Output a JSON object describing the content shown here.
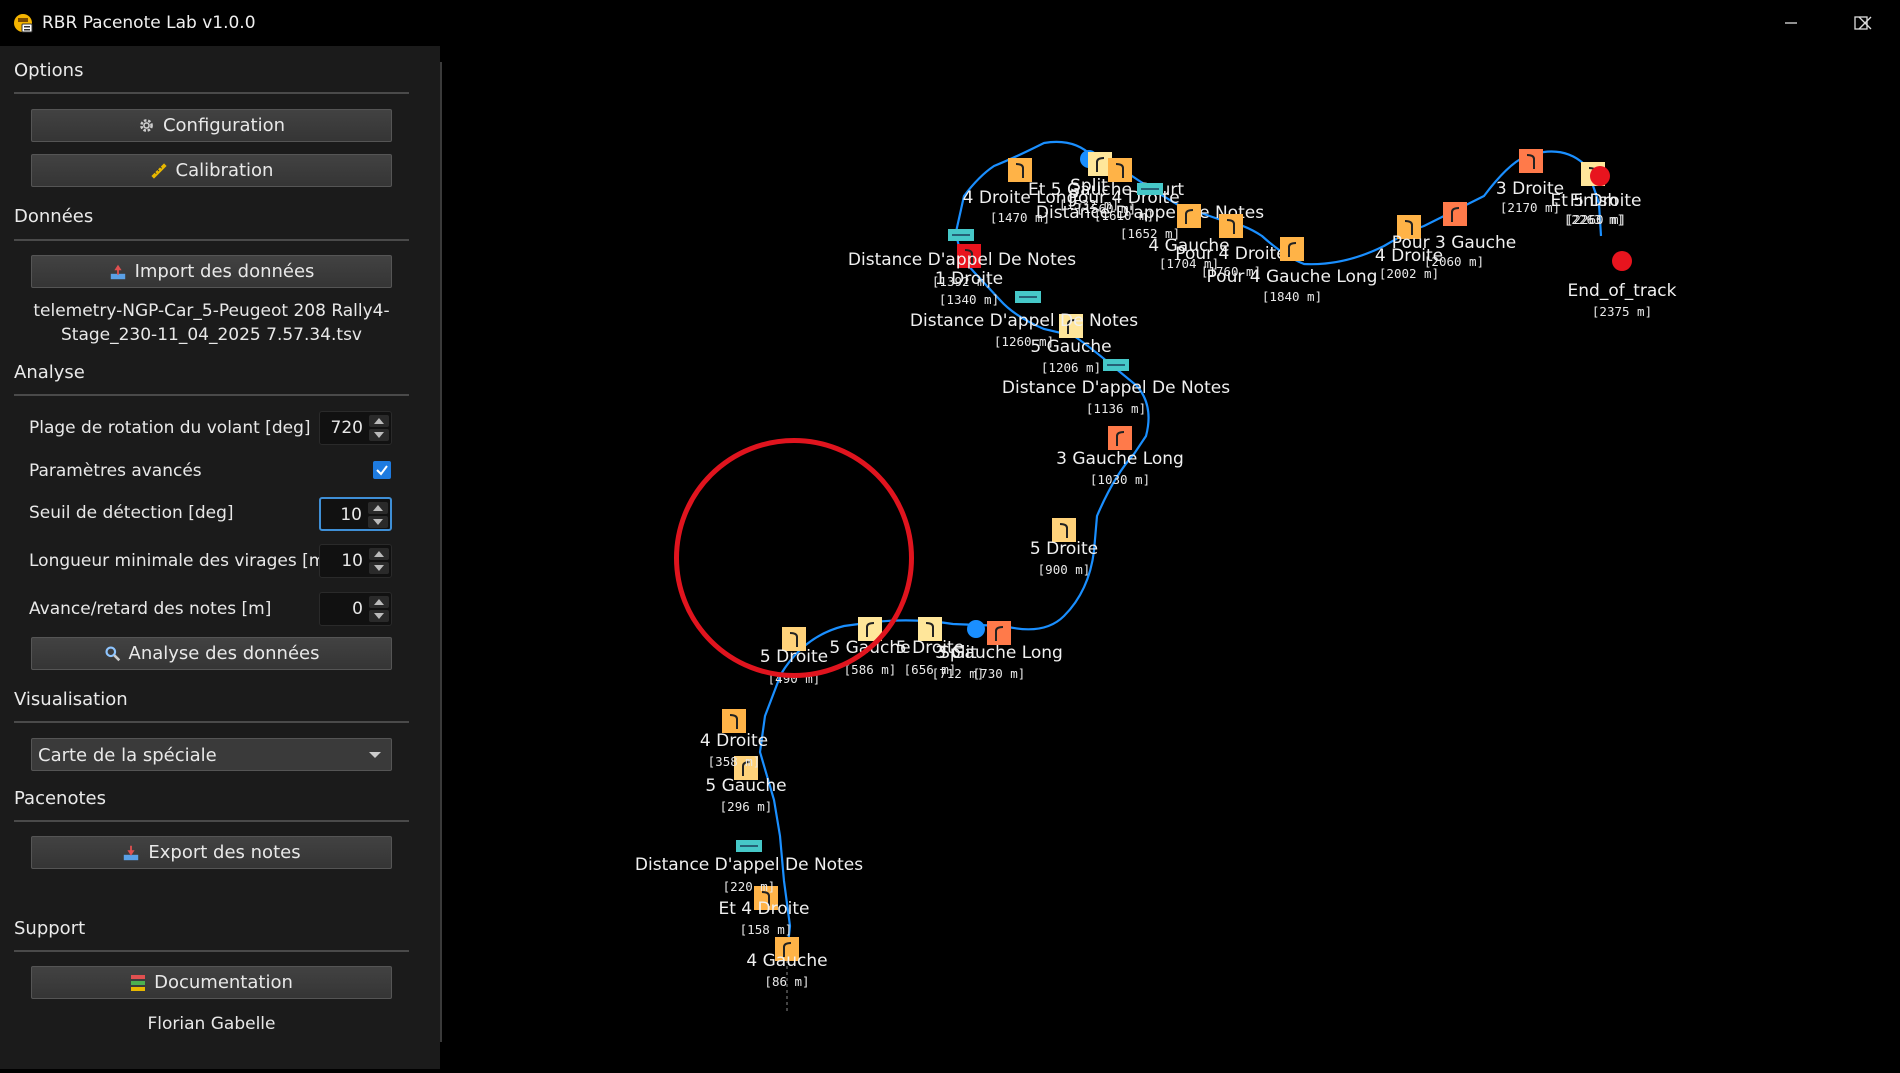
{
  "window": {
    "title": "RBR Pacenote Lab v1.0.0",
    "controls": [
      "minimize",
      "maximize",
      "close"
    ]
  },
  "sidebar": {
    "options": {
      "title": "Options",
      "configuration_label": "Configuration",
      "calibration_label": "Calibration"
    },
    "donnees": {
      "title": "Données",
      "import_label": "Import des données",
      "filename_line1": "telemetry-NGP-Car_5-Peugeot 208 Rally4-",
      "filename_line2": "Stage_230-11_04_2025 7.57.34.tsv"
    },
    "analyse": {
      "title": "Analyse",
      "params": [
        {
          "label": "Plage de rotation du volant [deg]",
          "value": "720"
        },
        {
          "label": "Paramètres avancés",
          "checked": true
        },
        {
          "label": "Seuil de détection [deg]",
          "value": "10"
        },
        {
          "label": "Longueur minimale des virages [m]",
          "value": "10"
        },
        {
          "label": "Avance/retard des notes [m]",
          "value": "0"
        }
      ],
      "analyse_label": "Analyse des données"
    },
    "visualisation": {
      "title": "Visualisation",
      "selected": "Carte de la spéciale"
    },
    "pacenotes": {
      "title": "Pacenotes",
      "export_label": "Export des notes"
    },
    "support": {
      "title": "Support",
      "documentation_label": "Documentation",
      "author": "Florian Gabelle"
    }
  },
  "map": {
    "route_color": "#1a8fff",
    "notes": [
      {
        "label": "4 Gauche",
        "dist": "[86 m]",
        "kind": "left",
        "color": "#ffb347"
      },
      {
        "label": "Et 4 Droite",
        "dist": "[158 m]",
        "kind": "right",
        "color": "#ffb347"
      },
      {
        "label": "Distance D'appel De Notes",
        "dist": "[220 m]",
        "kind": "call",
        "color": "#46c8c8"
      },
      {
        "label": "5 Gauche",
        "dist": "[296 m]",
        "kind": "left",
        "color": "#ffd27a"
      },
      {
        "label": "4 Droite",
        "dist": "[358 m]",
        "kind": "right",
        "color": "#ffb347"
      },
      {
        "label": "5 Droite",
        "dist": "[490 m]",
        "kind": "right",
        "color": "#ffd27a"
      },
      {
        "label": "5 Gauche",
        "dist": "[586 m]",
        "kind": "left",
        "color": "#ffe69a"
      },
      {
        "label": "5 Droite",
        "dist": "[656 m]",
        "kind": "right",
        "color": "#ffe69a"
      },
      {
        "label": "Split",
        "dist": "[712 m]",
        "kind": "split",
        "color": "#1a8fff"
      },
      {
        "label": "3 Gauche Long",
        "dist": "[730 m]",
        "kind": "left",
        "color": "#ff7a4a"
      },
      {
        "label": "5 Droite",
        "dist": "[900 m]",
        "kind": "right",
        "color": "#ffd27a"
      },
      {
        "label": "3 Gauche Long",
        "dist": "[1030 m]",
        "kind": "left",
        "color": "#ff7a4a"
      },
      {
        "label": "Distance D'appel De Notes",
        "dist": "[1136 m]",
        "kind": "call",
        "color": "#46c8c8"
      },
      {
        "label": "5 Gauche",
        "dist": "[1206 m]",
        "kind": "left",
        "color": "#ffe69a"
      },
      {
        "label": "Distance D'appel De Notes",
        "dist": "[1260 m]",
        "kind": "call",
        "color": "#46c8c8"
      },
      {
        "label": "1 Droite",
        "dist": "[1340 m]",
        "kind": "hairpin",
        "color": "#e8141e"
      },
      {
        "label": "Distance D'appel De Notes",
        "dist": "[1392 m]",
        "kind": "call",
        "color": "#46c8c8"
      },
      {
        "label": "4 Droite Long",
        "dist": "[1470 m]",
        "kind": "right",
        "color": "#ffb347"
      },
      {
        "label": "Split",
        "dist": "[1532 m]",
        "kind": "split",
        "color": "#1a8fff"
      },
      {
        "label": "Et 5 Gauche Court",
        "dist": "[1560 m]",
        "kind": "left",
        "color": "#ffe69a"
      },
      {
        "label": "Pour 4 Droite",
        "dist": "[1610 m]",
        "kind": "right",
        "color": "#ffb347"
      },
      {
        "label": "Distance D'appel De Notes",
        "dist": "[1652 m]",
        "kind": "call",
        "color": "#46c8c8"
      },
      {
        "label": "4 Gauche",
        "dist": "[1704 m]",
        "kind": "left",
        "color": "#ffb347"
      },
      {
        "label": "Pour 4 Droite",
        "dist": "[1760 m]",
        "kind": "right",
        "color": "#ffb347"
      },
      {
        "label": "Pour 4 Gauche Long",
        "dist": "[1840 m]",
        "kind": "left",
        "color": "#ffb347"
      },
      {
        "label": "4 Droite",
        "dist": "[2002 m]",
        "kind": "right",
        "color": "#ffb347"
      },
      {
        "label": "Pour 3 Gauche",
        "dist": "[2060 m]",
        "kind": "left",
        "color": "#ff7a4a"
      },
      {
        "label": "3 Droite",
        "dist": "[2170 m]",
        "kind": "right",
        "color": "#ff7a4a"
      },
      {
        "label": "Et 5 Droite",
        "dist": "[2260 m]",
        "kind": "right",
        "color": "#ffe69a"
      },
      {
        "label": "Finish",
        "dist": "[2263 m]",
        "kind": "finish",
        "color": "#e8141e"
      },
      {
        "label": "End_of_track",
        "dist": "[2375 m]",
        "kind": "stop",
        "color": "#e8141e"
      }
    ]
  }
}
